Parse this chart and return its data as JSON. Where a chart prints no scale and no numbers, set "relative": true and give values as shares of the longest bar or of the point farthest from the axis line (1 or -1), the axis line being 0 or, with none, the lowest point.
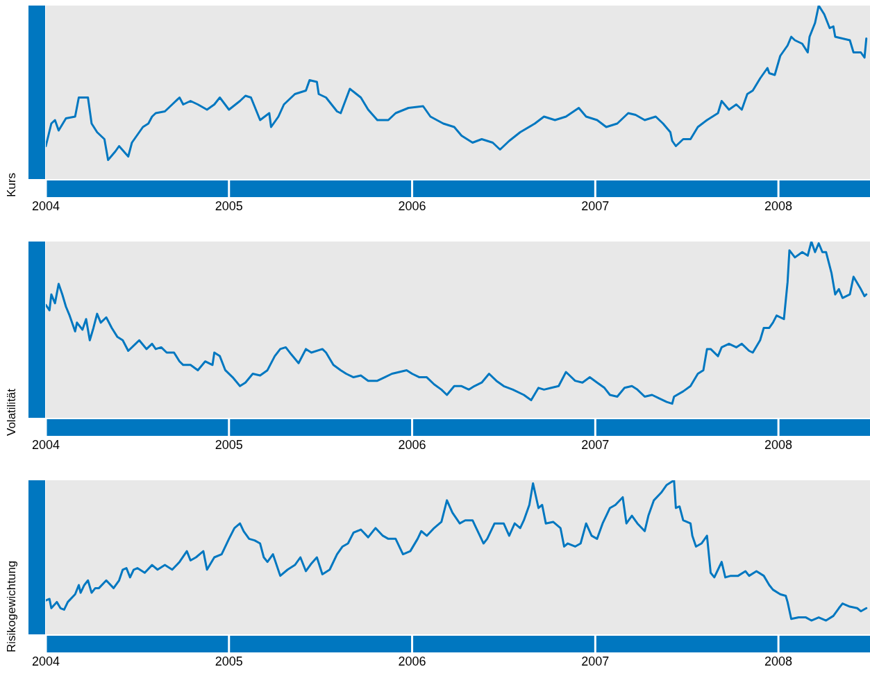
{
  "chart_data": [
    {
      "type": "line",
      "ylabel": "Kurs",
      "relative": true,
      "color": "#0077c0",
      "xlim": [
        2004,
        2008.5
      ],
      "xticks": [
        2004,
        2005,
        2006,
        2007,
        2008
      ],
      "grid": false,
      "legend": false,
      "x": [
        2004.0,
        2004.03,
        2004.05,
        2004.07,
        2004.11,
        2004.16,
        2004.18,
        2004.23,
        2004.25,
        2004.28,
        2004.32,
        2004.34,
        2004.38,
        2004.4,
        2004.45,
        2004.47,
        2004.51,
        2004.53,
        2004.56,
        2004.58,
        2004.6,
        2004.65,
        2004.69,
        2004.73,
        2004.75,
        2004.79,
        2004.83,
        2004.88,
        2004.92,
        2004.95,
        2005.0,
        2005.06,
        2005.09,
        2005.12,
        2005.17,
        2005.22,
        2005.23,
        2005.27,
        2005.3,
        2005.36,
        2005.42,
        2005.44,
        2005.48,
        2005.49,
        2005.53,
        2005.59,
        2005.61,
        2005.66,
        2005.72,
        2005.76,
        2005.81,
        2005.87,
        2005.91,
        2005.98,
        2006.06,
        2006.1,
        2006.17,
        2006.23,
        2006.27,
        2006.33,
        2006.38,
        2006.44,
        2006.48,
        2006.53,
        2006.59,
        2006.67,
        2006.72,
        2006.78,
        2006.84,
        2006.91,
        2006.95,
        2007.01,
        2007.06,
        2007.12,
        2007.18,
        2007.22,
        2007.27,
        2007.33,
        2007.37,
        2007.41,
        2007.42,
        2007.44,
        2007.48,
        2007.52,
        2007.56,
        2007.61,
        2007.67,
        2007.69,
        2007.73,
        2007.77,
        2007.8,
        2007.83,
        2007.86,
        2007.9,
        2007.94,
        2007.95,
        2007.98,
        2008.01,
        2008.05,
        2008.07,
        2008.09,
        2008.13,
        2008.16,
        2008.17,
        2008.2,
        2008.22,
        2008.25,
        2008.28,
        2008.3,
        2008.31,
        2008.35,
        2008.39,
        2008.41,
        2008.45,
        2008.47,
        2008.48
      ],
      "values": [
        0.19,
        0.32,
        0.34,
        0.28,
        0.35,
        0.36,
        0.47,
        0.47,
        0.32,
        0.27,
        0.23,
        0.11,
        0.16,
        0.19,
        0.13,
        0.21,
        0.27,
        0.3,
        0.32,
        0.36,
        0.38,
        0.39,
        0.43,
        0.47,
        0.43,
        0.45,
        0.43,
        0.4,
        0.43,
        0.47,
        0.4,
        0.45,
        0.48,
        0.47,
        0.34,
        0.38,
        0.3,
        0.36,
        0.43,
        0.49,
        0.51,
        0.57,
        0.56,
        0.49,
        0.47,
        0.39,
        0.38,
        0.52,
        0.47,
        0.4,
        0.34,
        0.34,
        0.38,
        0.41,
        0.42,
        0.36,
        0.32,
        0.3,
        0.25,
        0.21,
        0.23,
        0.21,
        0.17,
        0.22,
        0.27,
        0.32,
        0.36,
        0.34,
        0.36,
        0.41,
        0.36,
        0.34,
        0.3,
        0.32,
        0.38,
        0.37,
        0.34,
        0.36,
        0.32,
        0.27,
        0.22,
        0.19,
        0.23,
        0.23,
        0.3,
        0.34,
        0.38,
        0.45,
        0.4,
        0.43,
        0.4,
        0.49,
        0.51,
        0.58,
        0.64,
        0.61,
        0.6,
        0.71,
        0.77,
        0.82,
        0.8,
        0.78,
        0.73,
        0.82,
        0.9,
        1,
        0.95,
        0.87,
        0.88,
        0.82,
        0.81,
        0.8,
        0.73,
        0.73,
        0.7,
        0.81
      ]
    },
    {
      "type": "line",
      "ylabel": "Volatilität",
      "relative": true,
      "color": "#0077c0",
      "xlim": [
        2004,
        2008.5
      ],
      "xticks": [
        2004,
        2005,
        2006,
        2007,
        2008
      ],
      "grid": false,
      "legend": false,
      "x": [
        2004.0,
        2004.02,
        2004.03,
        2004.05,
        2004.07,
        2004.09,
        2004.11,
        2004.13,
        2004.16,
        2004.17,
        2004.2,
        2004.22,
        2004.24,
        2004.26,
        2004.28,
        2004.3,
        2004.33,
        2004.36,
        2004.39,
        2004.42,
        2004.45,
        2004.49,
        2004.51,
        2004.55,
        2004.58,
        2004.6,
        2004.63,
        2004.66,
        2004.7,
        2004.73,
        2004.75,
        2004.79,
        2004.83,
        2004.87,
        2004.91,
        2004.92,
        2004.95,
        2004.98,
        2005.02,
        2005.06,
        2005.09,
        2005.13,
        2005.17,
        2005.21,
        2005.25,
        2005.28,
        2005.31,
        2005.34,
        2005.38,
        2005.42,
        2005.45,
        2005.51,
        2005.53,
        2005.57,
        2005.61,
        2005.64,
        2005.68,
        2005.72,
        2005.76,
        2005.81,
        2005.85,
        2005.89,
        2005.93,
        2005.97,
        2006.0,
        2006.04,
        2006.08,
        2006.12,
        2006.16,
        2006.19,
        2006.23,
        2006.27,
        2006.31,
        2006.34,
        2006.38,
        2006.42,
        2006.46,
        2006.5,
        2006.55,
        2006.61,
        2006.65,
        2006.69,
        2006.72,
        2006.76,
        2006.8,
        2006.84,
        2006.86,
        2006.89,
        2006.93,
        2006.97,
        2007.01,
        2007.05,
        2007.08,
        2007.12,
        2007.16,
        2007.2,
        2007.23,
        2007.27,
        2007.31,
        2007.35,
        2007.39,
        2007.42,
        2007.43,
        2007.48,
        2007.52,
        2007.56,
        2007.59,
        2007.61,
        2007.63,
        2007.67,
        2007.69,
        2007.73,
        2007.77,
        2007.8,
        2007.84,
        2007.86,
        2007.9,
        2007.92,
        2007.95,
        2007.97,
        2007.99,
        2008.03,
        2008.05,
        2008.06,
        2008.09,
        2008.13,
        2008.16,
        2008.18,
        2008.2,
        2008.22,
        2008.24,
        2008.26,
        2008.29,
        2008.31,
        2008.33,
        2008.35,
        2008.39,
        2008.41,
        2008.45,
        2008.47,
        2008.48
      ],
      "values": [
        0.64,
        0.61,
        0.7,
        0.65,
        0.76,
        0.7,
        0.63,
        0.58,
        0.49,
        0.54,
        0.5,
        0.56,
        0.44,
        0.51,
        0.59,
        0.54,
        0.57,
        0.51,
        0.46,
        0.44,
        0.38,
        0.42,
        0.44,
        0.39,
        0.42,
        0.39,
        0.4,
        0.37,
        0.37,
        0.32,
        0.3,
        0.3,
        0.27,
        0.32,
        0.3,
        0.37,
        0.35,
        0.27,
        0.23,
        0.18,
        0.2,
        0.25,
        0.24,
        0.27,
        0.35,
        0.39,
        0.4,
        0.36,
        0.31,
        0.39,
        0.37,
        0.39,
        0.37,
        0.3,
        0.27,
        0.25,
        0.23,
        0.24,
        0.21,
        0.21,
        0.23,
        0.25,
        0.26,
        0.27,
        0.25,
        0.23,
        0.23,
        0.19,
        0.16,
        0.13,
        0.18,
        0.18,
        0.16,
        0.18,
        0.2,
        0.25,
        0.21,
        0.18,
        0.16,
        0.13,
        0.1,
        0.17,
        0.16,
        0.17,
        0.18,
        0.26,
        0.24,
        0.21,
        0.2,
        0.23,
        0.2,
        0.17,
        0.13,
        0.12,
        0.17,
        0.18,
        0.16,
        0.12,
        0.13,
        0.11,
        0.09,
        0.08,
        0.12,
        0.15,
        0.18,
        0.25,
        0.27,
        0.39,
        0.39,
        0.35,
        0.4,
        0.42,
        0.4,
        0.42,
        0.38,
        0.37,
        0.44,
        0.51,
        0.51,
        0.54,
        0.58,
        0.56,
        0.77,
        0.95,
        0.91,
        0.94,
        0.92,
        1,
        0.94,
        0.99,
        0.94,
        0.94,
        0.82,
        0.7,
        0.73,
        0.68,
        0.7,
        0.8,
        0.73,
        0.69,
        0.7
      ]
    },
    {
      "type": "line",
      "ylabel": "Risikogewichtung",
      "relative": true,
      "color": "#0077c0",
      "xlim": [
        2004,
        2008.5
      ],
      "xticks": [
        2004,
        2005,
        2006,
        2007,
        2008
      ],
      "grid": false,
      "legend": false,
      "x": [
        2004.0,
        2004.02,
        2004.03,
        2004.06,
        2004.08,
        2004.1,
        2004.12,
        2004.16,
        2004.18,
        2004.19,
        2004.21,
        2004.23,
        2004.25,
        2004.27,
        2004.29,
        2004.33,
        2004.37,
        2004.4,
        2004.42,
        2004.44,
        2004.46,
        2004.48,
        2004.5,
        2004.54,
        2004.58,
        2004.61,
        2004.65,
        2004.69,
        2004.73,
        2004.77,
        2004.79,
        2004.82,
        2004.86,
        2004.88,
        2004.92,
        2004.96,
        2005.0,
        2005.03,
        2005.06,
        2005.08,
        2005.11,
        2005.14,
        2005.17,
        2005.19,
        2005.21,
        2005.24,
        2005.28,
        2005.32,
        2005.36,
        2005.39,
        2005.42,
        2005.45,
        2005.48,
        2005.51,
        2005.55,
        2005.59,
        2005.62,
        2005.65,
        2005.68,
        2005.72,
        2005.76,
        2005.8,
        2005.84,
        2005.87,
        2005.91,
        2005.95,
        2005.99,
        2006.03,
        2006.05,
        2006.08,
        2006.12,
        2006.16,
        2006.19,
        2006.22,
        2006.26,
        2006.29,
        2006.33,
        2006.35,
        2006.39,
        2006.41,
        2006.45,
        2006.5,
        2006.53,
        2006.56,
        2006.59,
        2006.61,
        2006.64,
        2006.66,
        2006.69,
        2006.71,
        2006.73,
        2006.77,
        2006.81,
        2006.83,
        2006.85,
        2006.89,
        2006.92,
        2006.95,
        2006.98,
        2007.01,
        2007.04,
        2007.06,
        2007.08,
        2007.11,
        2007.15,
        2007.17,
        2007.2,
        2007.23,
        2007.27,
        2007.29,
        2007.32,
        2007.36,
        2007.39,
        2007.43,
        2007.44,
        2007.46,
        2007.48,
        2007.52,
        2007.53,
        2007.55,
        2007.58,
        2007.61,
        2007.63,
        2007.65,
        2007.67,
        2007.69,
        2007.71,
        2007.74,
        2007.78,
        2007.82,
        2007.84,
        2007.88,
        2007.92,
        2007.95,
        2007.97,
        2008.01,
        2008.04,
        2008.05,
        2008.07,
        2008.11,
        2008.15,
        2008.18,
        2008.22,
        2008.26,
        2008.3,
        2008.33,
        2008.35,
        2008.39,
        2008.43,
        2008.45,
        2008.48
      ],
      "values": [
        0.22,
        0.23,
        0.17,
        0.21,
        0.17,
        0.16,
        0.21,
        0.26,
        0.32,
        0.27,
        0.32,
        0.35,
        0.27,
        0.3,
        0.3,
        0.35,
        0.3,
        0.35,
        0.42,
        0.43,
        0.37,
        0.42,
        0.43,
        0.4,
        0.45,
        0.42,
        0.45,
        0.42,
        0.47,
        0.54,
        0.48,
        0.5,
        0.54,
        0.42,
        0.5,
        0.52,
        0.62,
        0.69,
        0.72,
        0.67,
        0.62,
        0.61,
        0.59,
        0.5,
        0.47,
        0.52,
        0.38,
        0.42,
        0.45,
        0.5,
        0.41,
        0.46,
        0.5,
        0.39,
        0.42,
        0.52,
        0.57,
        0.59,
        0.66,
        0.68,
        0.63,
        0.69,
        0.64,
        0.62,
        0.62,
        0.52,
        0.54,
        0.62,
        0.67,
        0.64,
        0.69,
        0.73,
        0.87,
        0.79,
        0.72,
        0.74,
        0.74,
        0.69,
        0.59,
        0.62,
        0.72,
        0.72,
        0.64,
        0.72,
        0.69,
        0.74,
        0.84,
        0.98,
        0.82,
        0.84,
        0.72,
        0.73,
        0.69,
        0.57,
        0.59,
        0.57,
        0.59,
        0.72,
        0.64,
        0.62,
        0.72,
        0.77,
        0.82,
        0.84,
        0.89,
        0.72,
        0.77,
        0.72,
        0.67,
        0.77,
        0.87,
        0.92,
        0.97,
        1,
        0.82,
        0.83,
        0.74,
        0.72,
        0.64,
        0.57,
        0.59,
        0.64,
        0.4,
        0.37,
        0.42,
        0.47,
        0.37,
        0.38,
        0.38,
        0.41,
        0.38,
        0.41,
        0.38,
        0.32,
        0.29,
        0.26,
        0.25,
        0.21,
        0.1,
        0.11,
        0.11,
        0.09,
        0.11,
        0.09,
        0.12,
        0.17,
        0.2,
        0.18,
        0.17,
        0.15,
        0.17
      ]
    }
  ]
}
